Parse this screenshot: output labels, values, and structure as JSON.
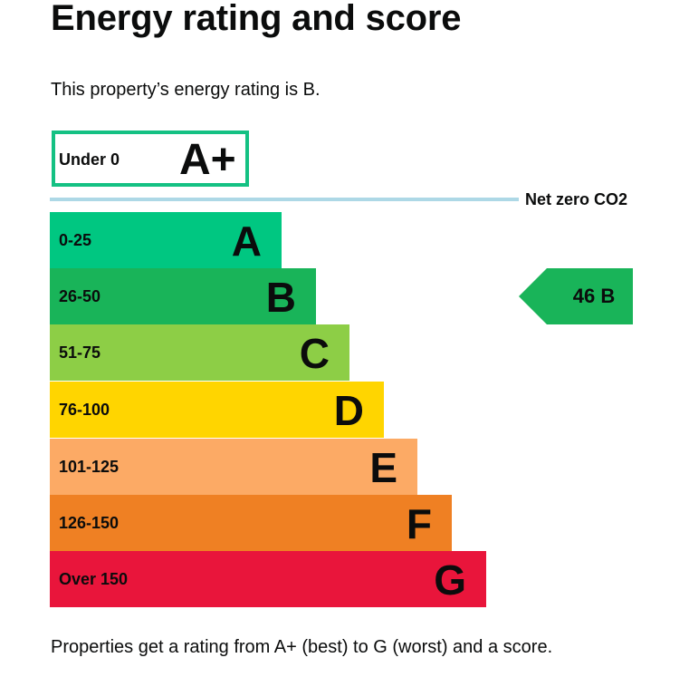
{
  "page": {
    "title": "Energy rating and score",
    "intro": "This property’s energy rating is B.",
    "footer": "Properties get a rating from A+ (best) to G (worst) and a score."
  },
  "epc": {
    "a_plus": {
      "range": "Under 0",
      "letter": "A+",
      "border_color": "#14c183"
    },
    "net_zero_label": "Net zero CO2",
    "net_zero_color": "#add8e6",
    "bands": [
      {
        "range": "0-25",
        "letter": "A",
        "color": "#00c781"
      },
      {
        "range": "26-50",
        "letter": "B",
        "color": "#19b459"
      },
      {
        "range": "51-75",
        "letter": "C",
        "color": "#8dce46"
      },
      {
        "range": "76-100",
        "letter": "D",
        "color": "#ffd500"
      },
      {
        "range": "101-125",
        "letter": "E",
        "color": "#fcaa65"
      },
      {
        "range": "126-150",
        "letter": "F",
        "color": "#ef8023"
      },
      {
        "range": "Over 150",
        "letter": "G",
        "color": "#e9153b"
      }
    ],
    "current": {
      "text": "46  B",
      "score": 46,
      "rating": "B",
      "color": "#19b459"
    }
  }
}
